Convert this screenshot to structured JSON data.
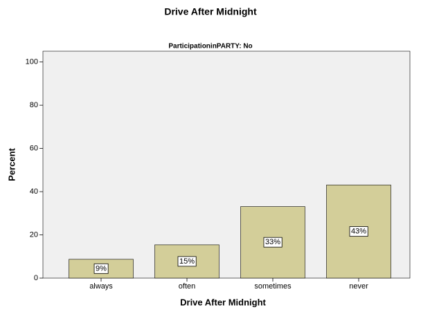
{
  "chart_data": {
    "type": "bar",
    "title": "Drive After Midnight",
    "subtitle": "ParticipationinPARTY: No",
    "x_label": "Drive After Midnight",
    "y_label": "Percent",
    "categories": [
      "always",
      "often",
      "sometimes",
      "never"
    ],
    "values": [
      8.7,
      15.4,
      33.1,
      43.1
    ],
    "value_labels": [
      "9%",
      "15%",
      "33%",
      "43%"
    ],
    "color": "#d3ce99",
    "ylim": [
      0,
      105
    ],
    "yticks": [
      0,
      20,
      40,
      60,
      80,
      100
    ],
    "grid": false
  }
}
